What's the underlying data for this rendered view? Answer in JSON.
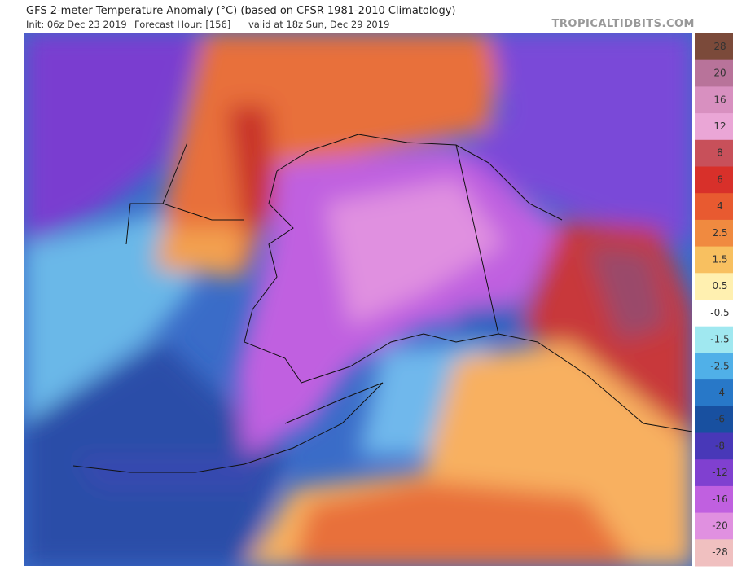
{
  "header": {
    "title": "GFS 2-meter Temperature Anomaly (°C) (based on CFSR 1981-2010 Climatology)",
    "init": "Init: 06z Dec 23 2019",
    "forecast_hour": "Forecast Hour: [156]",
    "valid": "valid at 18z Sun, Dec 29 2019",
    "watermark": "TROPICALTIDBITS.COM"
  },
  "colorbar": {
    "labels": [
      "28",
      "20",
      "16",
      "12",
      "8",
      "6",
      "4",
      "2.5",
      "1.5",
      "0.5",
      "-0.5",
      "-1.5",
      "-2.5",
      "-4",
      "-6",
      "-8",
      "-12",
      "-16",
      "-20",
      "-28"
    ],
    "colors": [
      "#7b4a3a",
      "#b8739a",
      "#d890c0",
      "#eaa6d6",
      "#c8505a",
      "#d8302a",
      "#e85a30",
      "#f08a40",
      "#f8c060",
      "#fff0b0",
      "#ffffff",
      "#a0e8f0",
      "#50b0e8",
      "#2878c8",
      "#1850a0",
      "#4838b8",
      "#8040d0",
      "#c060e0",
      "#e090e0",
      "#f0c0c0"
    ]
  }
}
